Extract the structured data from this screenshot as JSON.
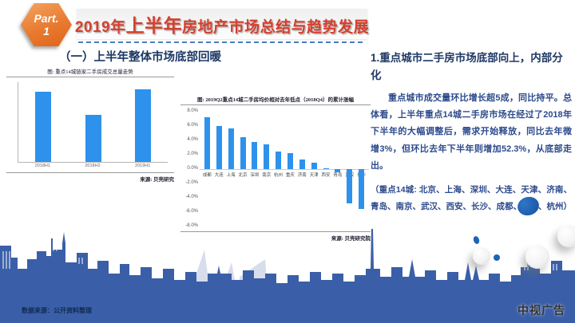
{
  "header": {
    "part_label": "Part.",
    "part_number": "1",
    "title_prefix": "2019年",
    "title_emphasis": "上半年",
    "title_suffix": "房地产市场总结与趋势发展"
  },
  "section_title": "（一）上半年整体市场底部回暖",
  "right_panel": {
    "heading": "1.重点城市二手房市场底部向上，内部分化",
    "paragraph": "重点城市成交量环比增长超5成，同比持平。总体看，上半年重点14城二手房市场在经过了2018年下半年的大幅调整后，需求开始释放，同比去年微增3%，但环比去年下半年则增加52.3%，从底部走出。",
    "note": "（重点14城: 北京、上海、深圳、大连、天津、济南、青岛、南京、武汉、西安、长沙、成都、重庆、杭州）"
  },
  "footer": {
    "data_source": "数据来源：公开资料整理",
    "watermark": "中视广告"
  },
  "colors": {
    "bar_blue": "#2e92ec",
    "skyline_blue": "#3a5fa8",
    "navy_text": "#1f3864",
    "body_text": "#2c4a8c",
    "title_red": "#d4402e",
    "hexagon_orange": "#e8772f"
  },
  "chart_data": [
    {
      "type": "bar",
      "title": "图: 重点14城链家二手房成交总量走势",
      "source": "来源: 贝壳研究",
      "categories": [
        "2018H1",
        "2018H2",
        "2019H1"
      ],
      "values": [
        97,
        65,
        100
      ],
      "xlabel": "",
      "ylabel": "",
      "ylim": [
        0,
        110
      ],
      "grid": false,
      "note": "relative transaction volume index; no y-axis tick labels shown"
    },
    {
      "type": "bar",
      "title": "图: 2019Q2重点14城二手房均价相对去年低点（2018Q4）的累计涨幅",
      "source": "来源: 贝壳研究院",
      "categories": [
        "成都",
        "大连",
        "上海",
        "北京",
        "深圳",
        "南京",
        "杭州",
        "重庆",
        "济南",
        "天津",
        "西安",
        "青岛",
        "武汉",
        "长沙"
      ],
      "values": [
        7.2,
        6.0,
        5.7,
        4.5,
        3.8,
        3.4,
        2.5,
        2.2,
        1.3,
        0.9,
        0.1,
        -0.4,
        -4.8,
        -5.6
      ],
      "y_ticks": [
        "8.0%",
        "6.0%",
        "4.0%",
        "2.0%",
        "0.0%",
        "-2.0%",
        "-4.0%",
        "-6.0%",
        "-8.0%"
      ],
      "xlabel": "",
      "ylabel": "",
      "ylim": [
        -8,
        8
      ],
      "unit": "%",
      "grid": false,
      "legend": "none"
    }
  ]
}
